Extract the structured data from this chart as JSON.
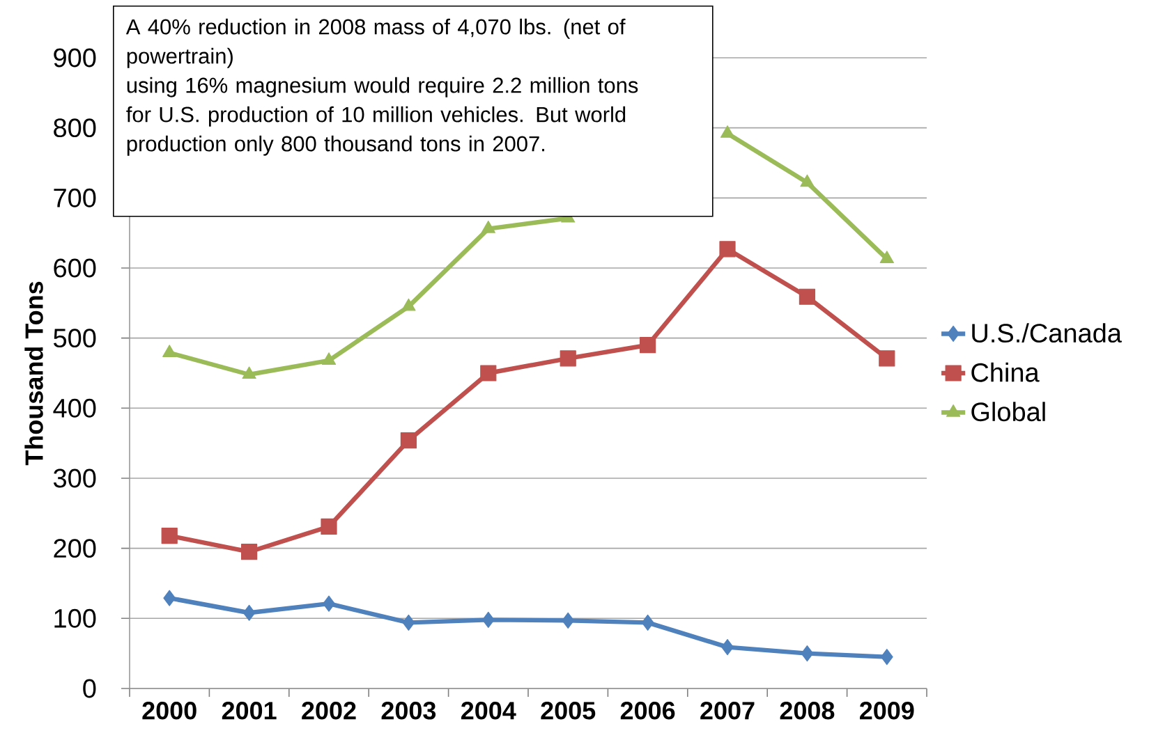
{
  "chart_data": {
    "type": "line",
    "ylabel": "Thousand Tons",
    "categories": [
      "2000",
      "2001",
      "2002",
      "2003",
      "2004",
      "2005",
      "2006",
      "2007",
      "2008",
      "2009"
    ],
    "series": [
      {
        "name": "U.S./Canada",
        "color": "#4f81bd",
        "marker": "diamond",
        "values": [
          129,
          108,
          121,
          94,
          98,
          97,
          94,
          59,
          50,
          45
        ]
      },
      {
        "name": "China",
        "color": "#c0504d",
        "marker": "square",
        "values": [
          218,
          195,
          231,
          354,
          450,
          471,
          490,
          627,
          559,
          471
        ]
      },
      {
        "name": "Global",
        "color": "#9bbb59",
        "marker": "triangle",
        "values": [
          479,
          448,
          468,
          545,
          656,
          671,
          null,
          792,
          722,
          613
        ]
      }
    ],
    "ylim": [
      0,
      900
    ],
    "yticks": [
      0,
      100,
      200,
      300,
      400,
      500,
      600,
      700,
      800,
      900
    ],
    "grid": "y",
    "legend": "right",
    "line_style": "solid",
    "annotations": [
      "A 40% reduction in 2008 mass of 4,070 lbs. (net of powertrain)",
      "using 16% magnesium would require 2.2 million tons for U.S. production of 10 million vehicles.  But world production only 800 thousand tons in 2007."
    ]
  }
}
